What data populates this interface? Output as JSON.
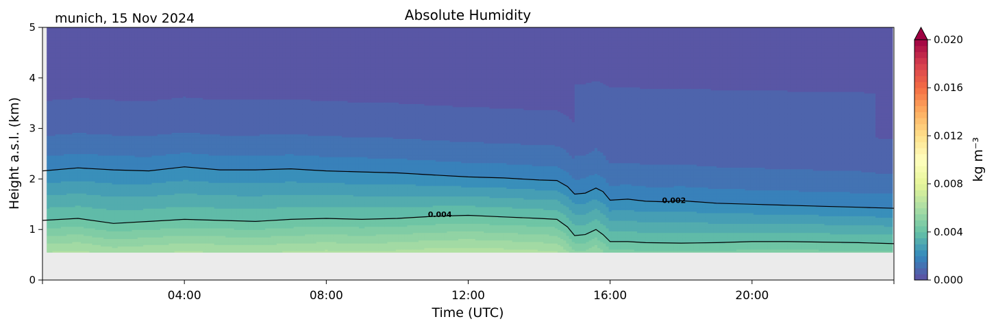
{
  "chart_data": {
    "type": "heatmap",
    "title": "Absolute Humidity",
    "subtitle": "munich, 15 Nov 2024",
    "xlabel": "Time (UTC)",
    "ylabel": "Height a.s.l. (km)",
    "xlim_hours": [
      0,
      24
    ],
    "ylim": [
      0,
      5
    ],
    "x_ticks": [
      {
        "value": 4,
        "label": "04:00"
      },
      {
        "value": 8,
        "label": "08:00"
      },
      {
        "value": 12,
        "label": "12:00"
      },
      {
        "value": 16,
        "label": "16:00"
      },
      {
        "value": 20,
        "label": "20:00"
      }
    ],
    "y_ticks": [
      {
        "value": 0,
        "label": "0"
      },
      {
        "value": 1,
        "label": "1"
      },
      {
        "value": 2,
        "label": "2"
      },
      {
        "value": 3,
        "label": "3"
      },
      {
        "value": 4,
        "label": "4"
      },
      {
        "value": 5,
        "label": "5"
      }
    ],
    "colorbar": {
      "label": "kg m⁻³",
      "range": [
        0,
        0.02
      ],
      "extend": "max",
      "ticks": [
        {
          "value": 0.0,
          "label": "0.000"
        },
        {
          "value": 0.004,
          "label": "0.004"
        },
        {
          "value": 0.008,
          "label": "0.008"
        },
        {
          "value": 0.012,
          "label": "0.012"
        },
        {
          "value": 0.016,
          "label": "0.016"
        },
        {
          "value": 0.02,
          "label": "0.020"
        }
      ]
    },
    "contours": [
      {
        "level": 0.002,
        "label": "0.002",
        "label_at": [
          17.8,
          1.58
        ],
        "points": [
          [
            0,
            2.16
          ],
          [
            1,
            2.22
          ],
          [
            2,
            2.18
          ],
          [
            3,
            2.16
          ],
          [
            4,
            2.24
          ],
          [
            5,
            2.18
          ],
          [
            6,
            2.18
          ],
          [
            7,
            2.2
          ],
          [
            8,
            2.16
          ],
          [
            9,
            2.14
          ],
          [
            10,
            2.12
          ],
          [
            11,
            2.08
          ],
          [
            12,
            2.04
          ],
          [
            13,
            2.02
          ],
          [
            14,
            1.98
          ],
          [
            14.5,
            1.97
          ],
          [
            14.8,
            1.85
          ],
          [
            15,
            1.7
          ],
          [
            15.3,
            1.72
          ],
          [
            15.6,
            1.82
          ],
          [
            15.8,
            1.75
          ],
          [
            16,
            1.58
          ],
          [
            16.5,
            1.6
          ],
          [
            17,
            1.56
          ],
          [
            17.5,
            1.55
          ],
          [
            18,
            1.57
          ],
          [
            19,
            1.52
          ],
          [
            20,
            1.5
          ],
          [
            21,
            1.48
          ],
          [
            22,
            1.46
          ],
          [
            23,
            1.44
          ],
          [
            24,
            1.42
          ]
        ]
      },
      {
        "level": 0.004,
        "label": "0.004",
        "label_at": [
          11.2,
          1.3
        ],
        "points": [
          [
            0,
            1.18
          ],
          [
            1,
            1.22
          ],
          [
            2,
            1.12
          ],
          [
            3,
            1.16
          ],
          [
            4,
            1.2
          ],
          [
            5,
            1.18
          ],
          [
            6,
            1.16
          ],
          [
            7,
            1.2
          ],
          [
            8,
            1.22
          ],
          [
            9,
            1.2
          ],
          [
            10,
            1.22
          ],
          [
            11,
            1.26
          ],
          [
            12,
            1.28
          ],
          [
            13,
            1.25
          ],
          [
            14,
            1.22
          ],
          [
            14.5,
            1.2
          ],
          [
            14.8,
            1.05
          ],
          [
            15,
            0.88
          ],
          [
            15.3,
            0.9
          ],
          [
            15.6,
            1.0
          ],
          [
            15.8,
            0.9
          ],
          [
            16,
            0.76
          ],
          [
            16.5,
            0.76
          ],
          [
            17,
            0.74
          ],
          [
            18,
            0.73
          ],
          [
            19,
            0.74
          ],
          [
            20,
            0.76
          ],
          [
            21,
            0.76
          ],
          [
            22,
            0.75
          ],
          [
            23,
            0.74
          ],
          [
            24,
            0.72
          ]
        ]
      }
    ],
    "data_coverage": {
      "height_min_km": 0.55,
      "time_start_h": 0.12,
      "time_end_h": 23.95
    },
    "background_color": "#ebebeb"
  }
}
